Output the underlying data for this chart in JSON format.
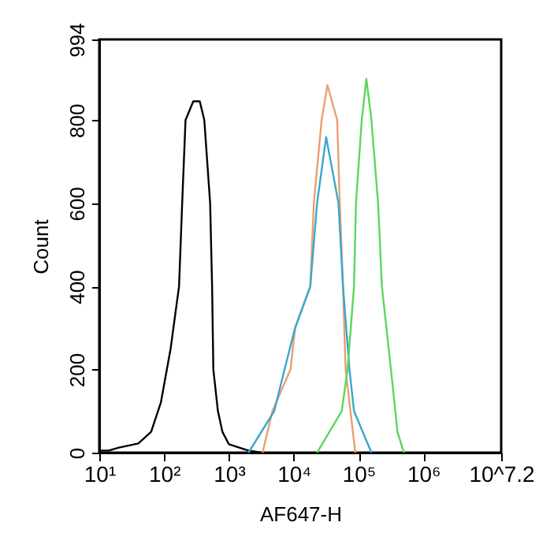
{
  "chart_data": {
    "type": "line",
    "xlabel": "AF647-H",
    "ylabel": "Count",
    "log": "x",
    "grid": false,
    "marker": "none",
    "line_style": "solid",
    "xlim": [
      10,
      15848932
    ],
    "xticks": [
      {
        "value": 10,
        "label": "10¹"
      },
      {
        "value": 100,
        "label": "10²"
      },
      {
        "value": 1000,
        "label": "10³"
      },
      {
        "value": 10000,
        "label": "10⁴"
      },
      {
        "value": 100000,
        "label": "10⁵"
      },
      {
        "value": 1000000,
        "label": "10⁶"
      },
      {
        "value": 15848932,
        "label": "10^7.2"
      }
    ],
    "ylim": [
      0,
      994
    ],
    "yticks": [
      0,
      200,
      400,
      600,
      800,
      994
    ],
    "series": [
      {
        "color": "#000000",
        "x": [
          10,
          14,
          20,
          40,
          63,
          89,
          126,
          170,
          190,
          214,
          282,
          355,
          417,
          513,
          550,
          575,
          676,
          794,
          1000,
          2000,
          3200
        ],
        "values": [
          5,
          5,
          12,
          22,
          50,
          120,
          250,
          400,
          600,
          800,
          845,
          845,
          800,
          600,
          400,
          200,
          100,
          50,
          20,
          5,
          0
        ]
      },
      {
        "color": "#e8a070",
        "x": [
          3300,
          4700,
          8900,
          10500,
          18000,
          20400,
          26900,
          33100,
          46800,
          51300,
          57500,
          63100,
          89000
        ],
        "values": [
          0,
          100,
          200,
          300,
          400,
          600,
          800,
          884,
          800,
          600,
          400,
          200,
          0
        ]
      },
      {
        "color": "#3aa6d0",
        "x": [
          2000,
          5000,
          7200,
          10500,
          18000,
          22900,
          31600,
          49000,
          57500,
          72400,
          85100,
          158000
        ],
        "values": [
          0,
          100,
          200,
          300,
          400,
          600,
          759,
          600,
          400,
          200,
          100,
          0
        ]
      },
      {
        "color": "#5cd65c",
        "x": [
          22900,
          55000,
          67600,
          85100,
          91200,
          112000,
          132000,
          158000,
          200000,
          229000,
          316000,
          398000,
          501000
        ],
        "values": [
          0,
          100,
          200,
          400,
          600,
          800,
          899,
          800,
          600,
          400,
          200,
          50,
          0
        ]
      }
    ]
  }
}
